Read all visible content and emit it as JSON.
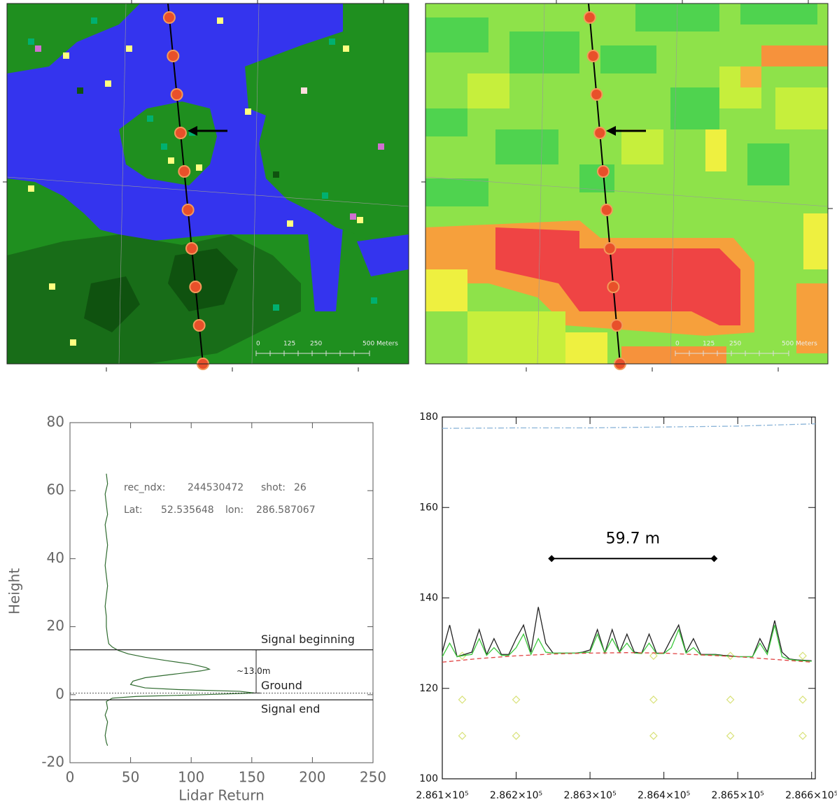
{
  "maps": [
    {
      "scale_labels": [
        "0",
        "125",
        "250",
        "500 Meters"
      ]
    },
    {
      "scale_labels": [
        "0",
        "125",
        "250",
        "500 Meters"
      ]
    }
  ],
  "chart_data": [
    {
      "type": "line",
      "xlabel": "Lidar Return",
      "ylabel": "Height",
      "xlim": [
        0,
        250
      ],
      "xticks": [
        0,
        50,
        100,
        150,
        200,
        250
      ],
      "ylim": [
        -20,
        80
      ],
      "yticks": [
        -20,
        0,
        20,
        40,
        60,
        80
      ],
      "series": [
        {
          "color": "#2f6b2f",
          "x": [
            30,
            31,
            29,
            30,
            31,
            29,
            30,
            31,
            30,
            29,
            30,
            31,
            30,
            29,
            30,
            30,
            31,
            32,
            35,
            40,
            48,
            62,
            80,
            100,
            112,
            115,
            108,
            85,
            62,
            52,
            50,
            62,
            90,
            140,
            152,
            110,
            55,
            35,
            30,
            31,
            29,
            31,
            30,
            29,
            30,
            31
          ],
          "values": [
            65,
            62,
            59,
            56,
            53,
            50,
            47,
            44,
            41,
            38,
            35,
            32,
            29,
            26,
            23,
            20,
            17,
            15,
            14,
            13,
            12,
            11,
            10,
            9,
            8,
            7.5,
            7,
            6,
            5,
            4,
            3,
            2,
            1.5,
            1,
            0.5,
            0,
            -0.5,
            -1,
            -2,
            -4,
            -6,
            -8,
            -10,
            -12,
            -14,
            -15
          ]
        }
      ],
      "info": [
        "rec_ndx:",
        "244530472",
        "shot:",
        "26",
        "Lat:",
        "52.535648",
        "lon:",
        "286.587067"
      ],
      "reference_lines": [
        {
          "label": "Signal beginning",
          "value": 13.2,
          "style": "solid"
        },
        {
          "label": "Ground",
          "value": 0.5,
          "style": "dotted"
        },
        {
          "label": "Signal end",
          "value": -1.5,
          "style": "solid"
        }
      ],
      "bracket_label": "~13.0m"
    },
    {
      "type": "line",
      "xlim": [
        286100,
        286605
      ],
      "xticks": [
        {
          "value": 286100,
          "label": "2.861×10⁵"
        },
        {
          "value": 286200,
          "label": "2.862×10⁵"
        },
        {
          "value": 286300,
          "label": "2.863×10⁵"
        },
        {
          "value": 286400,
          "label": "2.864×10⁵"
        },
        {
          "value": 286500,
          "label": "2.865×10⁵"
        },
        {
          "value": 286600,
          "label": "2.866×10⁵"
        }
      ],
      "ylim": [
        100,
        180
      ],
      "yticks": [
        100,
        120,
        140,
        160,
        180
      ],
      "series": [
        {
          "color": "#8ab4d8",
          "style": "dashdot",
          "x": [
            286100,
            286200,
            286300,
            286400,
            286500,
            286605
          ],
          "values": [
            177.5,
            177.6,
            177.6,
            177.8,
            178,
            178.5
          ]
        },
        {
          "color": "#d9e27a",
          "style": "markers",
          "x": [
            286127,
            286200,
            286386,
            286490,
            286588,
            286127,
            286200,
            286386,
            286490,
            286588,
            286127,
            286386,
            286490,
            286588
          ],
          "values": [
            117.5,
            117.5,
            117.5,
            117.5,
            117.5,
            109.5,
            109.5,
            109.5,
            109.5,
            109.5,
            127.2,
            127.2,
            127.2,
            127.2
          ]
        },
        {
          "color": "#222222",
          "style": "solid",
          "x": [
            286100,
            286110,
            286120,
            286130,
            286140,
            286150,
            286160,
            286170,
            286180,
            286190,
            286200,
            286210,
            286220,
            286230,
            286240,
            286250,
            286260,
            286270,
            286280,
            286290,
            286300,
            286310,
            286320,
            286330,
            286340,
            286350,
            286360,
            286370,
            286380,
            286390,
            286400,
            286410,
            286420,
            286430,
            286440,
            286450,
            286460,
            286470,
            286480,
            286490,
            286500,
            286510,
            286520,
            286530,
            286540,
            286550,
            286560,
            286570,
            286580,
            286590,
            286600
          ],
          "values": [
            128,
            134,
            127,
            127.5,
            128,
            133,
            127.5,
            131,
            127.5,
            127.5,
            131,
            134,
            128,
            138,
            130,
            127.8,
            127.8,
            127.8,
            127.8,
            128,
            128.5,
            133,
            127.8,
            133,
            128,
            132,
            128,
            127.8,
            132,
            127.8,
            127.8,
            131,
            134,
            128,
            131,
            127.5,
            127.5,
            127.5,
            127.3,
            127.2,
            127,
            127,
            127,
            131,
            128,
            135,
            128,
            126.5,
            126.3,
            126.2,
            126.1
          ]
        },
        {
          "color": "#3cc83c",
          "style": "solid",
          "x": [
            286100,
            286110,
            286120,
            286130,
            286140,
            286150,
            286160,
            286170,
            286180,
            286190,
            286200,
            286210,
            286220,
            286230,
            286240,
            286250,
            286260,
            286270,
            286280,
            286290,
            286300,
            286310,
            286320,
            286330,
            286340,
            286350,
            286360,
            286370,
            286380,
            286390,
            286400,
            286410,
            286420,
            286430,
            286440,
            286450,
            286460,
            286470,
            286480,
            286490,
            286500,
            286510,
            286520,
            286530,
            286540,
            286550,
            286560,
            286570,
            286580,
            286590,
            286600
          ],
          "values": [
            127,
            130,
            127,
            127.3,
            127.5,
            131,
            127.3,
            129,
            127.3,
            127.3,
            129,
            132,
            127.5,
            131,
            128,
            127.8,
            127.8,
            127.8,
            127.8,
            127.9,
            128,
            132,
            127.8,
            131,
            128,
            130,
            127.8,
            127.7,
            130,
            127.7,
            127.7,
            129,
            133,
            127.8,
            129,
            127.4,
            127.4,
            127.4,
            127.2,
            127.1,
            127,
            127,
            127,
            130,
            127.5,
            134,
            127,
            126.4,
            126.2,
            126.1,
            126
          ]
        },
        {
          "color": "#e04040",
          "style": "dashed",
          "x": [
            286100,
            286150,
            286200,
            286250,
            286300,
            286350,
            286400,
            286450,
            286500,
            286550,
            286600
          ],
          "values": [
            125.8,
            126.6,
            127.2,
            127.6,
            127.8,
            127.9,
            127.8,
            127.4,
            127,
            126.4,
            125.8
          ]
        }
      ],
      "annotation": {
        "text": "59.7 m",
        "x": [
          286248,
          286468
        ],
        "y": 148.7
      }
    }
  ]
}
